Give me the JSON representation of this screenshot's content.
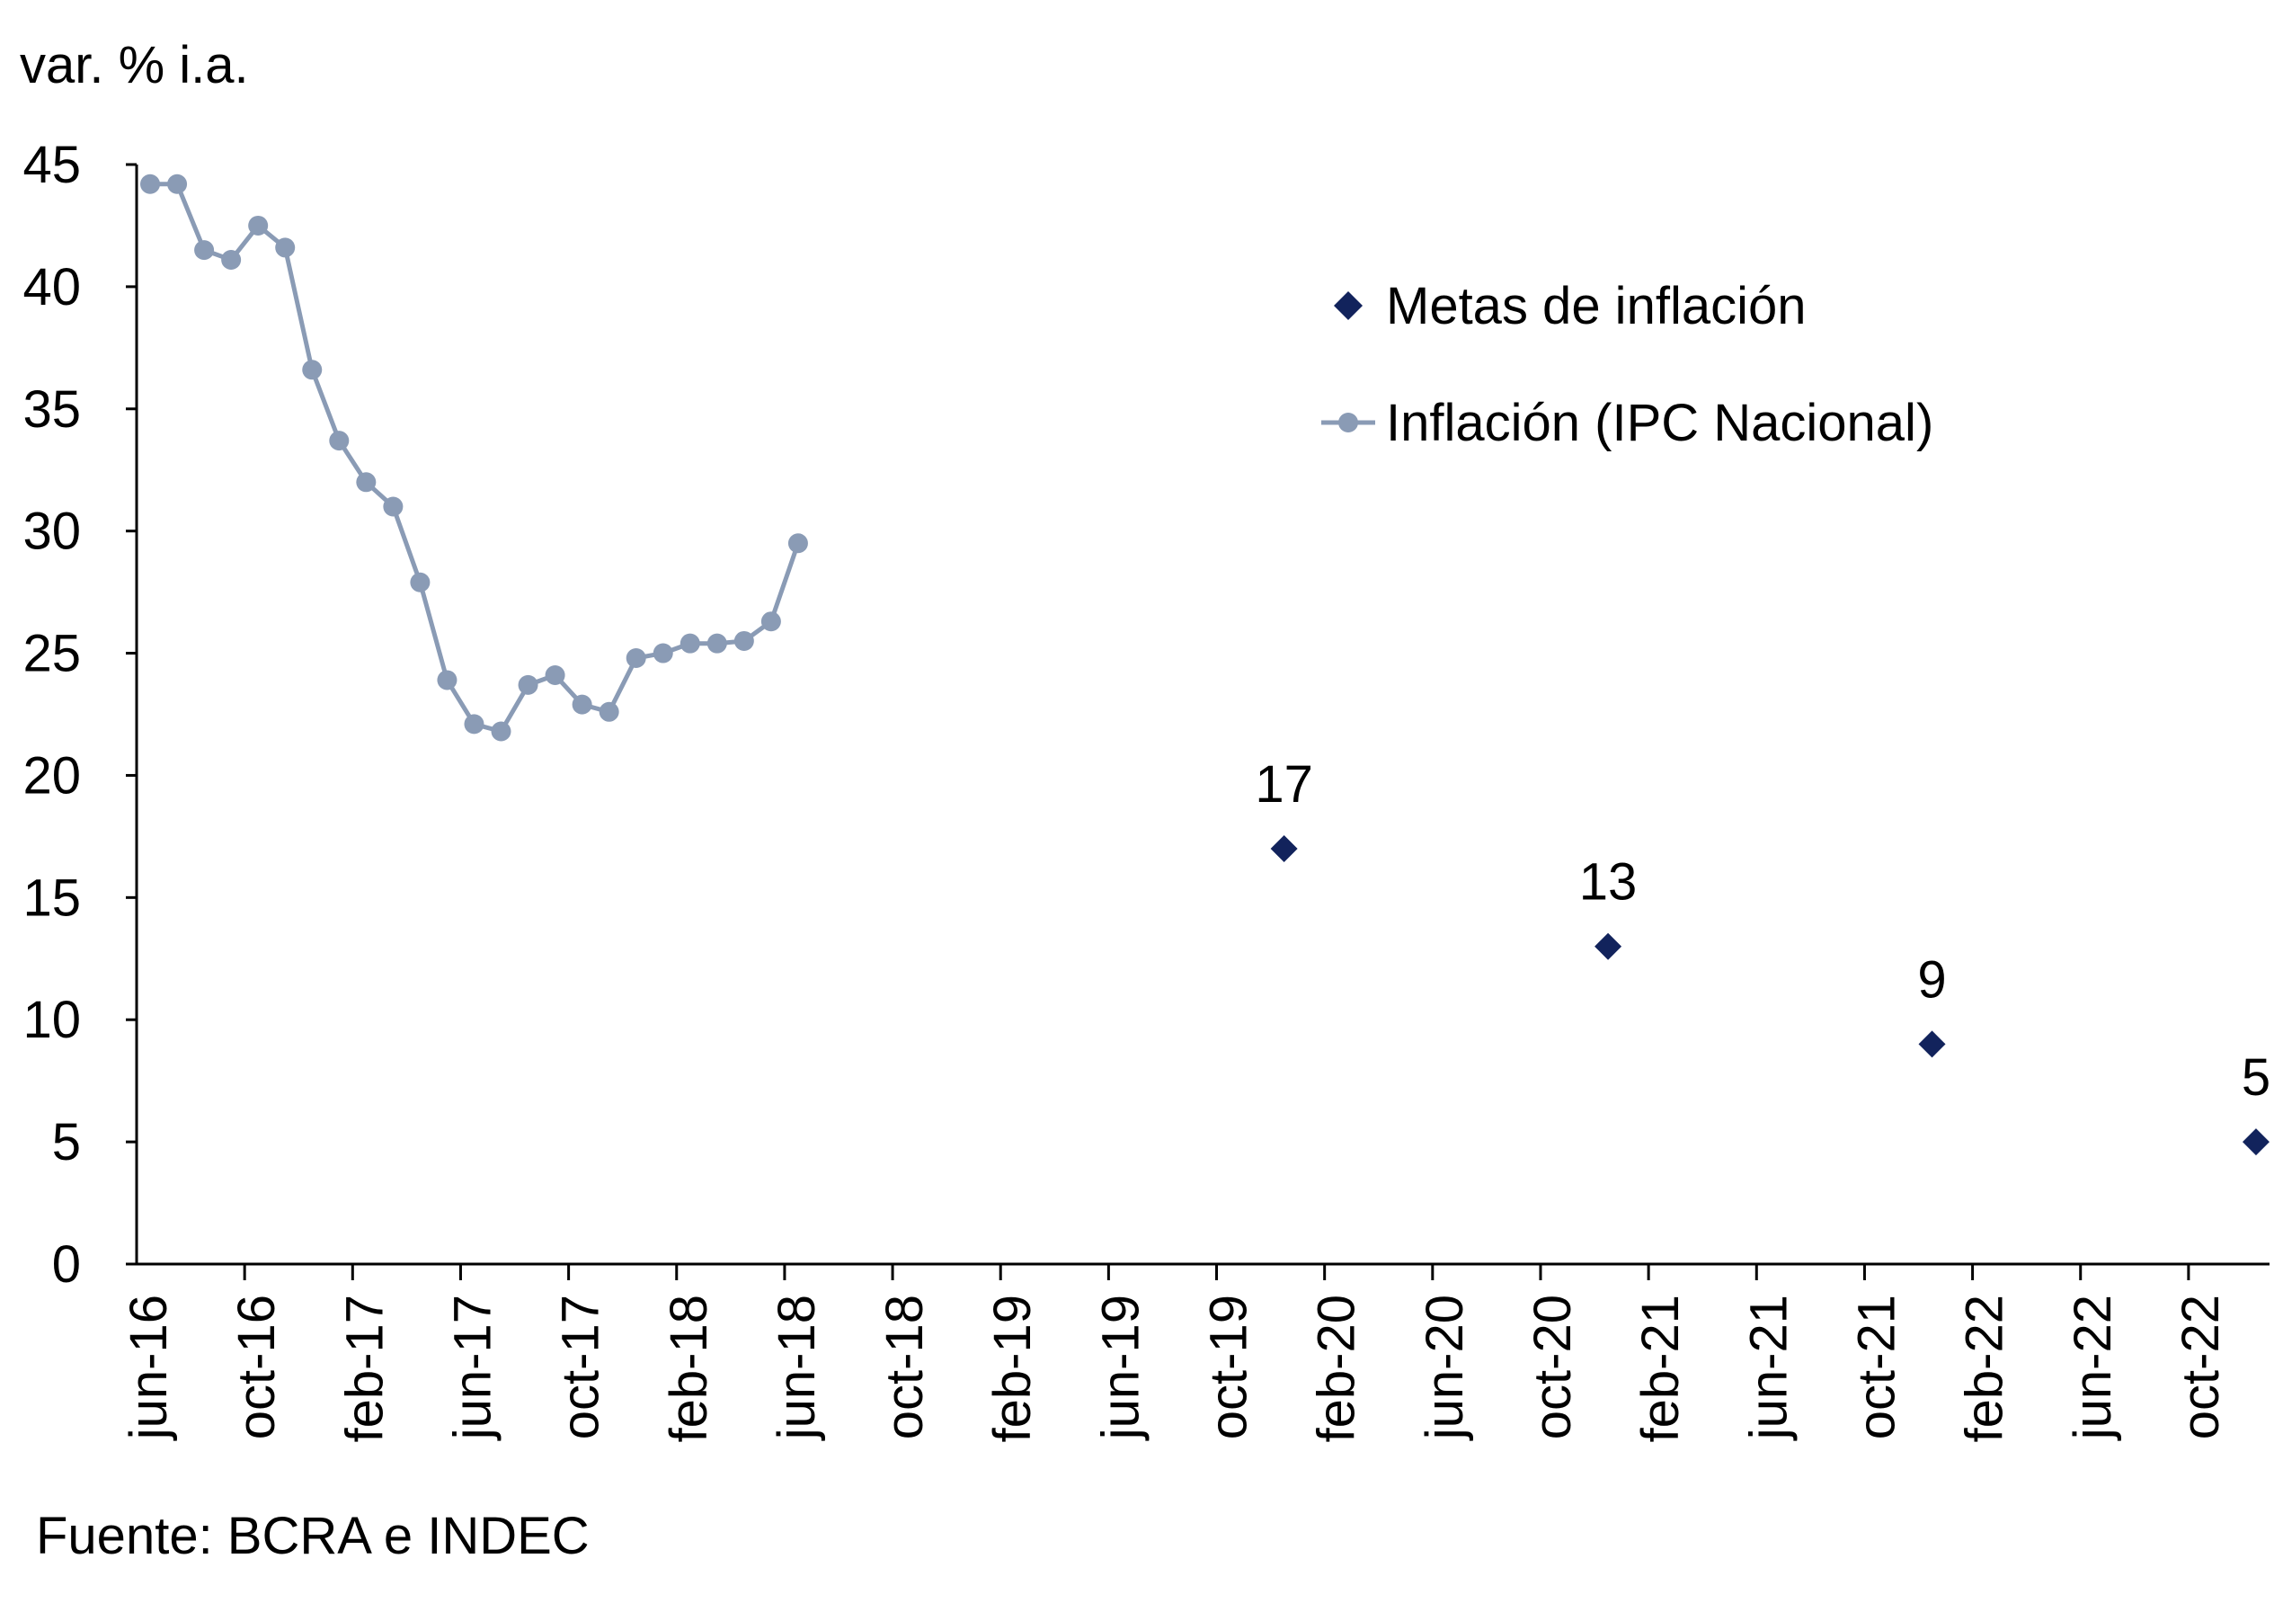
{
  "source_text": "Fuente:  BCRA e INDEC",
  "chart_data": {
    "type": "line",
    "ylabel": "var. % i.a.",
    "ylim": [
      0,
      45
    ],
    "yticks": [
      0,
      5,
      10,
      15,
      20,
      25,
      30,
      35,
      40,
      45
    ],
    "x_start": "jun-16",
    "x_end": "dic-22",
    "xticks": [
      "jun-16",
      "oct-16",
      "feb-17",
      "jun-17",
      "oct-17",
      "feb-18",
      "jun-18",
      "oct-18",
      "feb-19",
      "jun-19",
      "oct-19",
      "feb-20",
      "jun-20",
      "oct-20",
      "feb-21",
      "jun-21",
      "oct-21",
      "feb-22",
      "jun-22",
      "oct-22"
    ],
    "legend_position": "top-right",
    "grid": false,
    "series": [
      {
        "name": "Metas de inflación",
        "kind": "marker",
        "marker": "diamond",
        "color": "#12235c",
        "points": [
          {
            "x": "dic-19",
            "y": 17,
            "label": "17"
          },
          {
            "x": "dic-20",
            "y": 13,
            "label": "13"
          },
          {
            "x": "dic-21",
            "y": 9,
            "label": "9"
          },
          {
            "x": "dic-22",
            "y": 5,
            "label": "5"
          }
        ]
      },
      {
        "name": "Inflación (IPC Nacional)",
        "kind": "line",
        "marker": "circle",
        "color": "#8a9bb5",
        "points": [
          {
            "x": "jun-16",
            "y": 44.2
          },
          {
            "x": "jul-16",
            "y": 44.2
          },
          {
            "x": "ago-16",
            "y": 41.5
          },
          {
            "x": "sep-16",
            "y": 41.1
          },
          {
            "x": "oct-16",
            "y": 42.5
          },
          {
            "x": "nov-16",
            "y": 41.6
          },
          {
            "x": "dic-16",
            "y": 36.6
          },
          {
            "x": "ene-17",
            "y": 33.7
          },
          {
            "x": "feb-17",
            "y": 32.0
          },
          {
            "x": "mar-17",
            "y": 31.0
          },
          {
            "x": "abr-17",
            "y": 27.9
          },
          {
            "x": "may-17",
            "y": 23.9
          },
          {
            "x": "jun-17",
            "y": 22.1
          },
          {
            "x": "jul-17",
            "y": 21.8
          },
          {
            "x": "ago-17",
            "y": 23.7
          },
          {
            "x": "sep-17",
            "y": 24.1
          },
          {
            "x": "oct-17",
            "y": 22.9
          },
          {
            "x": "nov-17",
            "y": 22.6
          },
          {
            "x": "dic-17",
            "y": 24.8
          },
          {
            "x": "ene-18",
            "y": 25.0
          },
          {
            "x": "feb-18",
            "y": 25.4
          },
          {
            "x": "mar-18",
            "y": 25.4
          },
          {
            "x": "abr-18",
            "y": 25.5
          },
          {
            "x": "may-18",
            "y": 26.3
          },
          {
            "x": "jun-18",
            "y": 29.5
          }
        ]
      }
    ]
  }
}
